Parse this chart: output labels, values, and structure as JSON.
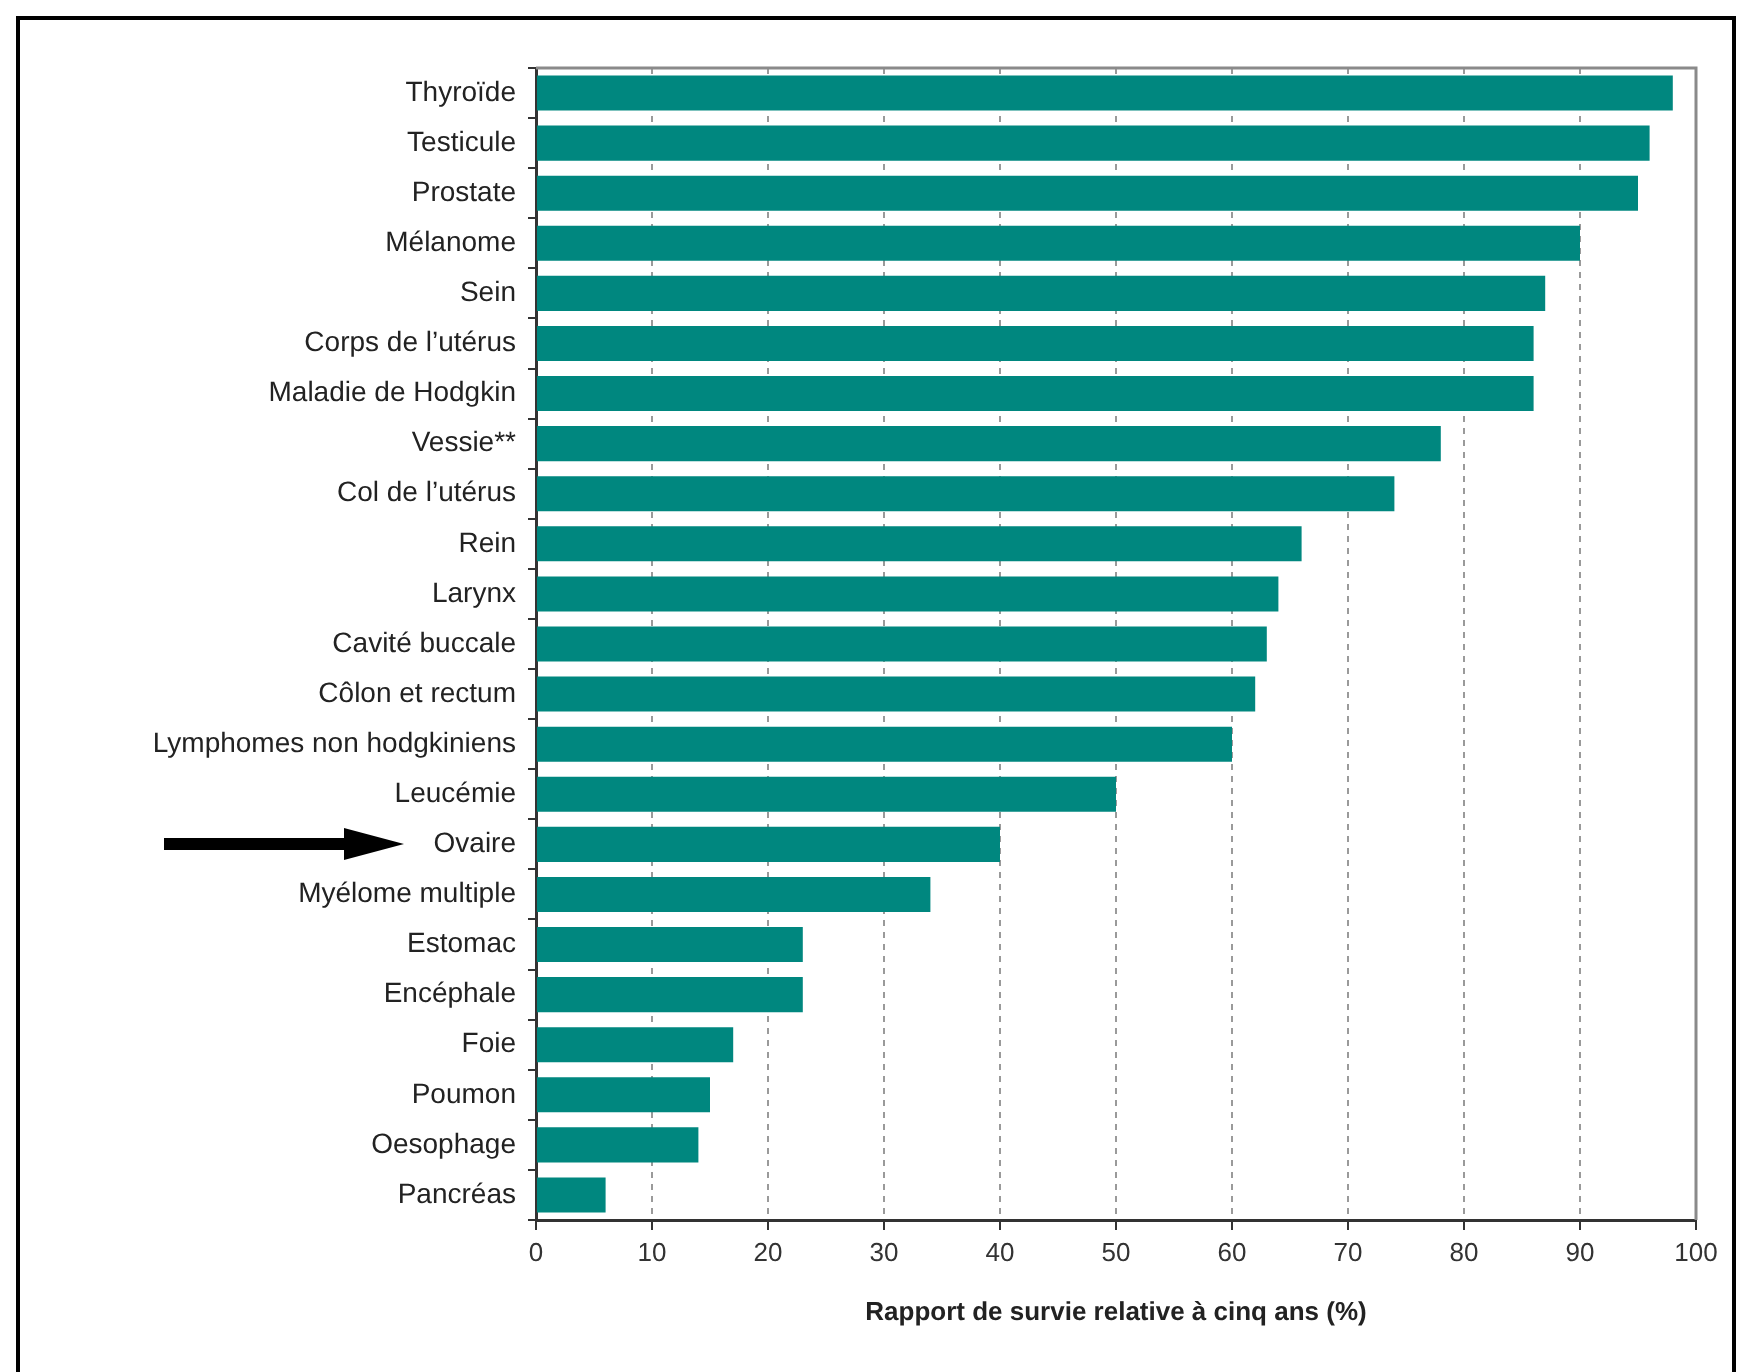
{
  "chart_data": {
    "type": "bar",
    "orientation": "horizontal",
    "xlabel": "Rapport de survie relative à cinq ans (%)",
    "categories": [
      "Thyroïde",
      "Testicule",
      "Prostate",
      "Mélanome",
      "Sein",
      "Corps de l’utérus",
      "Maladie de Hodgkin",
      "Vessie**",
      "Col de l’utérus",
      "Rein",
      "Larynx",
      "Cavité buccale",
      "Côlon et rectum",
      "Lymphomes non hodgkiniens",
      "Leucémie",
      "Ovaire",
      "Myélome multiple",
      "Estomac",
      "Encéphale",
      "Foie",
      "Poumon",
      "Oesophage",
      "Pancréas"
    ],
    "values": [
      98,
      96,
      95,
      90,
      87,
      86,
      86,
      78,
      74,
      66,
      64,
      63,
      62,
      60,
      50,
      40,
      34,
      23,
      23,
      17,
      15,
      14,
      6
    ],
    "color": "#00877f",
    "xlim": [
      0,
      100
    ],
    "xticks": [
      0,
      10,
      20,
      30,
      40,
      50,
      60,
      70,
      80,
      90,
      100
    ],
    "grid": "x"
  }
}
